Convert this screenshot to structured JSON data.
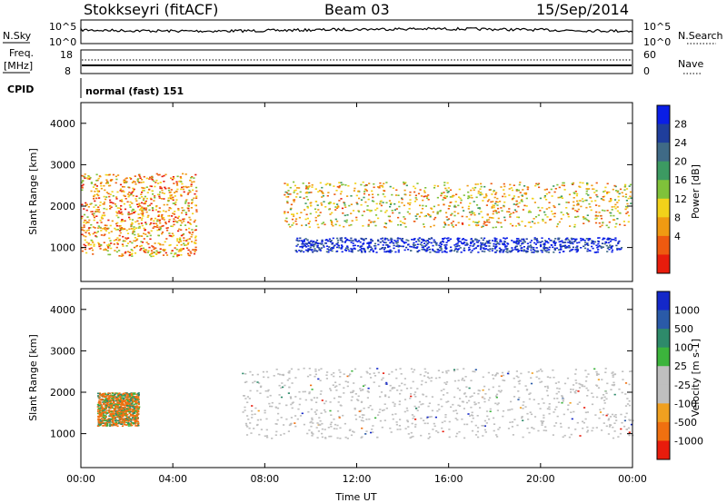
{
  "header": {
    "station": "Stokkseyri (fitACF)",
    "beam": "Beam 03",
    "date": "15/Sep/2014"
  },
  "top_panels": {
    "nsky_label": "N.Sky",
    "nsky_ticks": [
      "10^5",
      "10^0"
    ],
    "nsearch_label": "N.Search",
    "nsearch_ticks": [
      "10^5",
      "10^0"
    ],
    "freq_label": "Freq.",
    "freq_unit": "[MHz]",
    "freq_ticks": [
      "18",
      "8"
    ],
    "nave_label": "Nave",
    "nave_ticks": [
      "60",
      "0"
    ],
    "cpid_label": "CPID",
    "cpid_value": "normal (fast) 151"
  },
  "chart_data": [
    {
      "type": "heatmap",
      "name": "power",
      "ylabel": "Slant Range [km]",
      "xlabel": "",
      "ylim": [
        180,
        4500
      ],
      "yticks": [
        "4000",
        "3000",
        "2000",
        "1000"
      ],
      "xticks": [
        "00:00",
        "04:00",
        "08:00",
        "12:00",
        "16:00",
        "20:00",
        "00:00"
      ],
      "colorbar_label": "Power [dB]",
      "colorbar_ticks": [
        "28",
        "24",
        "20",
        "16",
        "12",
        "8",
        "4"
      ],
      "colorbar_colors": [
        "#0a1ee6",
        "#1f3e9c",
        "#3f6a86",
        "#3c9a62",
        "#7fc23a",
        "#f2d21a",
        "#f09a12",
        "#ee5a10",
        "#e81c0c"
      ],
      "features": [
        {
          "label": "main echo band",
          "hours": [
            9.3,
            23.5
          ],
          "range_km": [
            900,
            1250
          ],
          "power_db": 28
        },
        {
          "label": "upper echo band",
          "hours": [
            8.8,
            23.9
          ],
          "range_km": [
            1500,
            2600
          ],
          "power_db": 12
        },
        {
          "label": "early echoes",
          "hours": [
            0.0,
            5.0
          ],
          "range_km": [
            800,
            2800
          ],
          "power_db": 10
        }
      ]
    },
    {
      "type": "heatmap",
      "name": "velocity",
      "ylabel": "Slant Range [km]",
      "xlabel": "Time UT",
      "ylim": [
        180,
        4500
      ],
      "yticks": [
        "4000",
        "3000",
        "2000",
        "1000"
      ],
      "xticks": [
        "00:00",
        "04:00",
        "08:00",
        "12:00",
        "16:00",
        "20:00",
        "00:00"
      ],
      "colorbar_label": "Velocity [m s-1]",
      "colorbar_ticks": [
        "1000",
        "500",
        "100",
        "25",
        "-25",
        "-100",
        "-500",
        "-1000"
      ],
      "colorbar_colors": [
        "#1428c8",
        "#2a5aa8",
        "#2e8a6a",
        "#3cb43c",
        "#bfbfbf",
        "#bfbfbf",
        "#f0a020",
        "#f07010",
        "#e81c0c"
      ],
      "features": [
        {
          "label": "ground scatter band",
          "hours": [
            7.0,
            24.0
          ],
          "range_km": [
            900,
            2600
          ],
          "velocity_ms": 0
        },
        {
          "label": "negative velocity patch",
          "hours": [
            0.7,
            2.5
          ],
          "range_km": [
            1200,
            2000
          ],
          "velocity_ms": -300
        }
      ]
    }
  ]
}
